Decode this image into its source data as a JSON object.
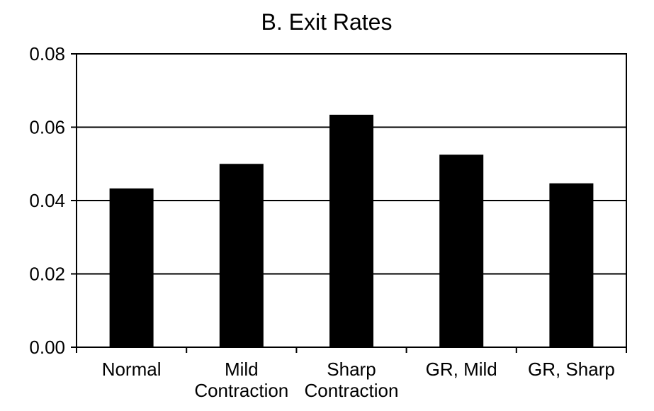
{
  "chart_data": {
    "type": "bar",
    "title": "B. Exit Rates",
    "xlabel": "",
    "ylabel": "",
    "categories": [
      [
        "Normal"
      ],
      [
        "Mild",
        "Contraction"
      ],
      [
        "Sharp",
        "Contraction"
      ],
      [
        "GR, Mild"
      ],
      [
        "GR, Sharp"
      ]
    ],
    "values": [
      0.0433,
      0.05,
      0.0634,
      0.0525,
      0.0447
    ],
    "ylim": [
      0,
      0.08
    ],
    "yticks": [
      "0.00",
      "0.02",
      "0.04",
      "0.06",
      "0.08"
    ],
    "ytick_values": [
      0,
      0.02,
      0.04,
      0.06,
      0.08
    ],
    "grid": true,
    "legend": "none",
    "colors": {
      "bar": "#000000",
      "axis": "#000000",
      "grid": "#000000",
      "background": "#ffffff"
    }
  }
}
